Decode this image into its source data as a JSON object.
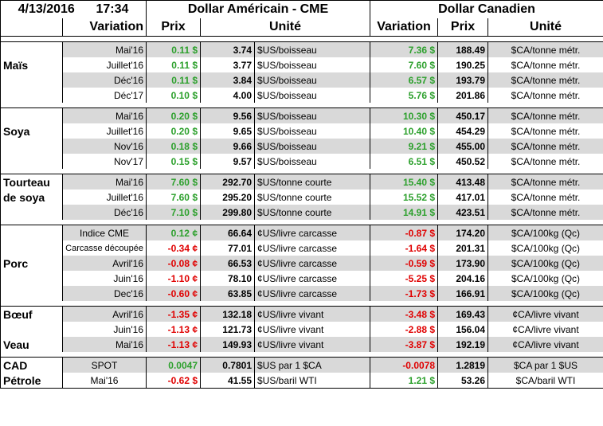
{
  "header": {
    "date": "4/13/2016",
    "time": "17:34",
    "usd_title": "Dollar Américain - CME",
    "cad_title": "Dollar Canadien",
    "col_variation": "Variation",
    "col_prix": "Prix",
    "col_unite": "Unité"
  },
  "colors": {
    "positive": "#2ca02c",
    "negative": "#e00000",
    "row_shade": "#d9d9d9"
  },
  "groups": [
    {
      "category": "Maïs",
      "rows": [
        {
          "period": "Mai'16",
          "usd_var": "0.11 $",
          "usd_price": "3.74",
          "usd_unit": "$US/boisseau",
          "cad_var": "7.36 $",
          "cad_price": "188.49",
          "cad_unit": "$CA/tonne métr."
        },
        {
          "period": "Juillet'16",
          "usd_var": "0.11 $",
          "usd_price": "3.77",
          "usd_unit": "$US/boisseau",
          "cad_var": "7.60 $",
          "cad_price": "190.25",
          "cad_unit": "$CA/tonne métr."
        },
        {
          "period": "Déc'16",
          "usd_var": "0.11 $",
          "usd_price": "3.84",
          "usd_unit": "$US/boisseau",
          "cad_var": "6.57 $",
          "cad_price": "193.79",
          "cad_unit": "$CA/tonne métr."
        },
        {
          "period": "Déc'17",
          "usd_var": "0.10 $",
          "usd_price": "4.00",
          "usd_unit": "$US/boisseau",
          "cad_var": "5.76 $",
          "cad_price": "201.86",
          "cad_unit": "$CA/tonne métr."
        }
      ]
    },
    {
      "category": "Soya",
      "rows": [
        {
          "period": "Mai'16",
          "usd_var": "0.20 $",
          "usd_price": "9.56",
          "usd_unit": "$US/boisseau",
          "cad_var": "10.30 $",
          "cad_price": "450.17",
          "cad_unit": "$CA/tonne métr."
        },
        {
          "period": "Juillet'16",
          "usd_var": "0.20 $",
          "usd_price": "9.65",
          "usd_unit": "$US/boisseau",
          "cad_var": "10.40 $",
          "cad_price": "454.29",
          "cad_unit": "$CA/tonne métr."
        },
        {
          "period": "Nov'16",
          "usd_var": "0.18 $",
          "usd_price": "9.66",
          "usd_unit": "$US/boisseau",
          "cad_var": "9.21 $",
          "cad_price": "455.00",
          "cad_unit": "$CA/tonne métr."
        },
        {
          "period": "Nov'17",
          "usd_var": "0.15 $",
          "usd_price": "9.57",
          "usd_unit": "$US/boisseau",
          "cad_var": "6.51 $",
          "cad_price": "450.52",
          "cad_unit": "$CA/tonne métr."
        }
      ]
    },
    {
      "category": "Tourteau de soya",
      "category_line1": "Tourteau",
      "category_line2": "de soya",
      "rows": [
        {
          "period": "Mai'16",
          "usd_var": "7.60 $",
          "usd_price": "292.70",
          "usd_unit": "$US/tonne courte",
          "cad_var": "15.40 $",
          "cad_price": "413.48",
          "cad_unit": "$CA/tonne métr."
        },
        {
          "period": "Juillet'16",
          "usd_var": "7.60 $",
          "usd_price": "295.20",
          "usd_unit": "$US/tonne courte",
          "cad_var": "15.52 $",
          "cad_price": "417.01",
          "cad_unit": "$CA/tonne métr."
        },
        {
          "period": "Déc'16",
          "usd_var": "7.10 $",
          "usd_price": "299.80",
          "usd_unit": "$US/tonne courte",
          "cad_var": "14.91 $",
          "cad_price": "423.51",
          "cad_unit": "$CA/tonne métr."
        }
      ]
    },
    {
      "category": "Porc",
      "rows": [
        {
          "period": "Indice CME",
          "usd_var": "0.12 ¢",
          "usd_price": "66.64",
          "usd_unit": "¢US/livre carcasse",
          "cad_var": "-0.87 $",
          "cad_price": "174.20",
          "cad_unit": "$CA/100kg (Qc)"
        },
        {
          "period": "Carcasse découpée",
          "usd_var": "-0.34 ¢",
          "usd_price": "77.01",
          "usd_unit": "¢US/livre carcasse",
          "cad_var": "-1.64 $",
          "cad_price": "201.31",
          "cad_unit": "$CA/100kg (Qc)"
        },
        {
          "period": "Avril'16",
          "usd_var": "-0.08 ¢",
          "usd_price": "66.53",
          "usd_unit": "¢US/livre carcasse",
          "cad_var": "-0.59 $",
          "cad_price": "173.90",
          "cad_unit": "$CA/100kg (Qc)"
        },
        {
          "period": "Juin'16",
          "usd_var": "-1.10 ¢",
          "usd_price": "78.10",
          "usd_unit": "¢US/livre carcasse",
          "cad_var": "-5.25 $",
          "cad_price": "204.16",
          "cad_unit": "$CA/100kg (Qc)"
        },
        {
          "period": "Dec'16",
          "usd_var": "-0.60 ¢",
          "usd_price": "63.85",
          "usd_unit": "¢US/livre carcasse",
          "cad_var": "-1.73 $",
          "cad_price": "166.91",
          "cad_unit": "$CA/100kg (Qc)"
        }
      ]
    },
    {
      "category_boeuf": "Bœuf",
      "category_veau": "Veau",
      "rows": [
        {
          "period": "Avril'16",
          "usd_var": "-1.35 ¢",
          "usd_price": "132.18",
          "usd_unit": "¢US/livre vivant",
          "cad_var": "-3.48 $",
          "cad_price": "169.43",
          "cad_unit": "¢CA/livre vivant"
        },
        {
          "period": "Juin'16",
          "usd_var": "-1.13 ¢",
          "usd_price": "121.73",
          "usd_unit": "¢US/livre vivant",
          "cad_var": "-2.88 $",
          "cad_price": "156.04",
          "cad_unit": "¢CA/livre vivant"
        },
        {
          "period": "Mai'16",
          "usd_var": "-1.13 ¢",
          "usd_price": "149.93",
          "usd_unit": "¢US/livre vivant",
          "cad_var": "-3.87 $",
          "cad_price": "192.19",
          "cad_unit": "¢CA/livre vivant"
        }
      ]
    },
    {
      "rows": [
        {
          "category": "CAD",
          "period": "SPOT",
          "usd_var": "0.0047",
          "usd_price": "0.7801",
          "usd_unit": "$US par 1 $CA",
          "cad_var": "-0.0078",
          "cad_price": "1.2819",
          "cad_unit": "$CA par 1 $US"
        },
        {
          "category": "Pétrole",
          "period": "Mai'16",
          "usd_var": "-0.62 $",
          "usd_price": "41.55",
          "usd_unit": "$US/baril WTI",
          "cad_var": "1.21 $",
          "cad_price": "53.26",
          "cad_unit": "$CA/baril WTI"
        }
      ]
    }
  ]
}
